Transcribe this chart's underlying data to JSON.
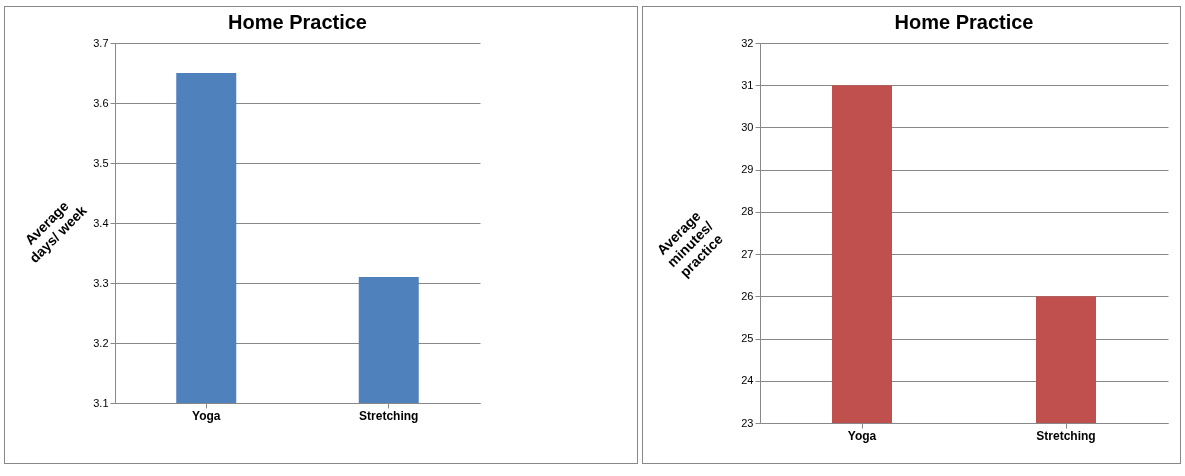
{
  "chart_data": [
    {
      "type": "bar",
      "title": "Home Practice",
      "ylabel": "Average\ndays/ week",
      "categories": [
        "Yoga",
        "Stretching"
      ],
      "values": [
        3.65,
        3.31
      ],
      "color": "#4f81bd",
      "ylim": [
        3.1,
        3.7
      ],
      "yticks": [
        3.1,
        3.2,
        3.3,
        3.4,
        3.5,
        3.6,
        3.7
      ],
      "grid": "y"
    },
    {
      "type": "bar",
      "title": "Home Practice",
      "ylabel": "Average\nminutes/\npractice",
      "categories": [
        "Yoga",
        "Stretching"
      ],
      "values": [
        31,
        26
      ],
      "color": "#c0504d",
      "ylim": [
        23,
        32
      ],
      "yticks": [
        23,
        24,
        25,
        26,
        27,
        28,
        29,
        30,
        31,
        32
      ],
      "grid": "y"
    }
  ]
}
